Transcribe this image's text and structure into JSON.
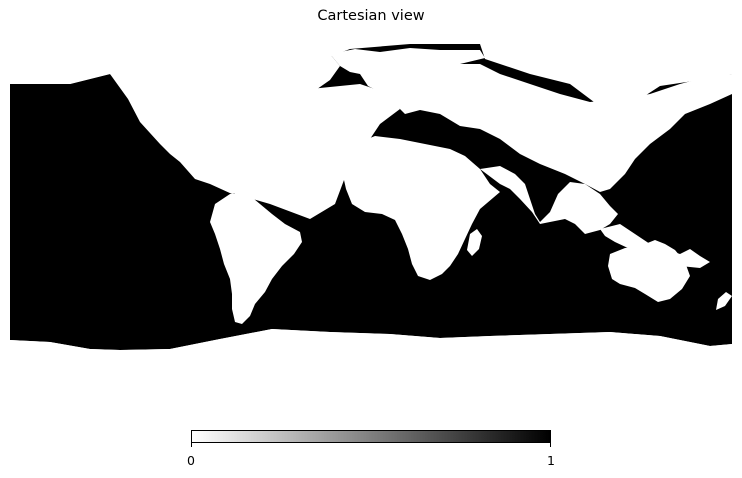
{
  "title": "Cartesian view",
  "projection": "cartesian",
  "map": {
    "ocean_color": "#000000",
    "land_color": "#ffffff",
    "ocean_value": 1,
    "land_value": 0
  },
  "colorbar": {
    "colormap": "greys",
    "min_color": "#ffffff",
    "max_color": "#000000",
    "min_label": "0",
    "max_label": "1"
  }
}
